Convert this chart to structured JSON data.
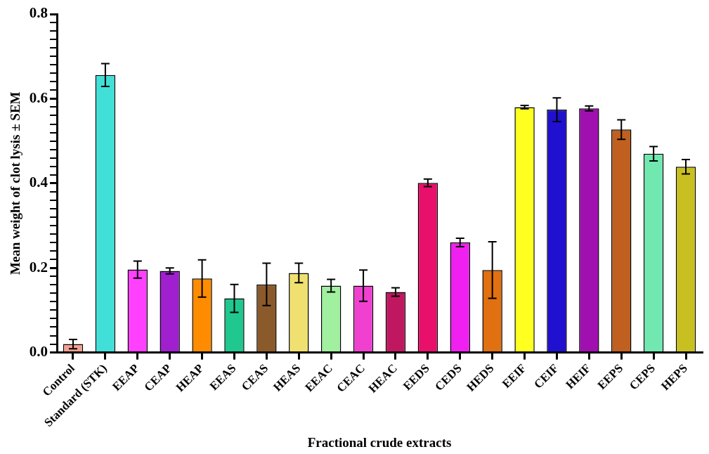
{
  "chart_data": {
    "type": "bar",
    "xlabel": "Fractional crude extracts",
    "ylabel": "Mean weight of clot lysis ± SEM",
    "categories": [
      "Control",
      "Standard (STK)",
      "EEAP",
      "CEAP",
      "HEAP",
      "EEAS",
      "CEAS",
      "HEAS",
      "EEAC",
      "CEAC",
      "HEAC",
      "EEDS",
      "CEDS",
      "HEDS",
      "EEIF",
      "CEIF",
      "HEIF",
      "EEPS",
      "CEPS",
      "HEPS"
    ],
    "values": [
      0.02,
      0.656,
      0.196,
      0.193,
      0.175,
      0.128,
      0.161,
      0.188,
      0.158,
      0.158,
      0.143,
      0.401,
      0.26,
      0.195,
      0.58,
      0.574,
      0.577,
      0.527,
      0.47,
      0.439
    ],
    "errors": [
      0.011,
      0.027,
      0.02,
      0.007,
      0.044,
      0.033,
      0.05,
      0.023,
      0.015,
      0.037,
      0.01,
      0.009,
      0.01,
      0.067,
      0.004,
      0.028,
      0.006,
      0.023,
      0.017,
      0.017
    ],
    "colors": [
      "#f4a090",
      "#40e0d8",
      "#ff40ff",
      "#a020d0",
      "#ff8c00",
      "#20c890",
      "#8b5a2b",
      "#f0e070",
      "#a0f0a0",
      "#f040d0",
      "#c01860",
      "#e8106a",
      "#f020f0",
      "#e07010",
      "#ffff20",
      "#2010d0",
      "#a010b0",
      "#c06020",
      "#70e8b0",
      "#c8c020"
    ],
    "ylim": [
      0,
      0.8
    ],
    "yticks": [
      {
        "value": 0,
        "label": "0.0"
      },
      {
        "value": 0.02,
        "label": null
      },
      {
        "value": 0.04,
        "label": null
      },
      {
        "value": 0.06,
        "label": null
      },
      {
        "value": 0.08,
        "label": null
      },
      {
        "value": 0.1,
        "label": null
      },
      {
        "value": 0.12,
        "label": null
      },
      {
        "value": 0.14,
        "label": null
      },
      {
        "value": 0.16,
        "label": null
      },
      {
        "value": 0.18,
        "label": null
      },
      {
        "value": 0.2,
        "label": "0.2"
      },
      {
        "value": 0.22,
        "label": null
      },
      {
        "value": 0.24,
        "label": null
      },
      {
        "value": 0.26,
        "label": null
      },
      {
        "value": 0.28,
        "label": null
      },
      {
        "value": 0.3,
        "label": null
      },
      {
        "value": 0.32,
        "label": null
      },
      {
        "value": 0.34,
        "label": null
      },
      {
        "value": 0.36,
        "label": null
      },
      {
        "value": 0.38,
        "label": null
      },
      {
        "value": 0.4,
        "label": "0.4"
      },
      {
        "value": 0.42,
        "label": null
      },
      {
        "value": 0.44,
        "label": null
      },
      {
        "value": 0.46,
        "label": null
      },
      {
        "value": 0.48,
        "label": null
      },
      {
        "value": 0.5,
        "label": null
      },
      {
        "value": 0.52,
        "label": null
      },
      {
        "value": 0.54,
        "label": null
      },
      {
        "value": 0.56,
        "label": null
      },
      {
        "value": 0.58,
        "label": null
      },
      {
        "value": 0.6,
        "label": "0.6"
      },
      {
        "value": 0.62,
        "label": null
      },
      {
        "value": 0.64,
        "label": null
      },
      {
        "value": 0.66,
        "label": null
      },
      {
        "value": 0.68,
        "label": null
      },
      {
        "value": 0.7,
        "label": null
      },
      {
        "value": 0.72,
        "label": null
      },
      {
        "value": 0.74,
        "label": null
      },
      {
        "value": 0.76,
        "label": null
      },
      {
        "value": 0.78,
        "label": null
      },
      {
        "value": 0.8,
        "label": "0.8"
      }
    ],
    "grid": false,
    "legend": false
  }
}
